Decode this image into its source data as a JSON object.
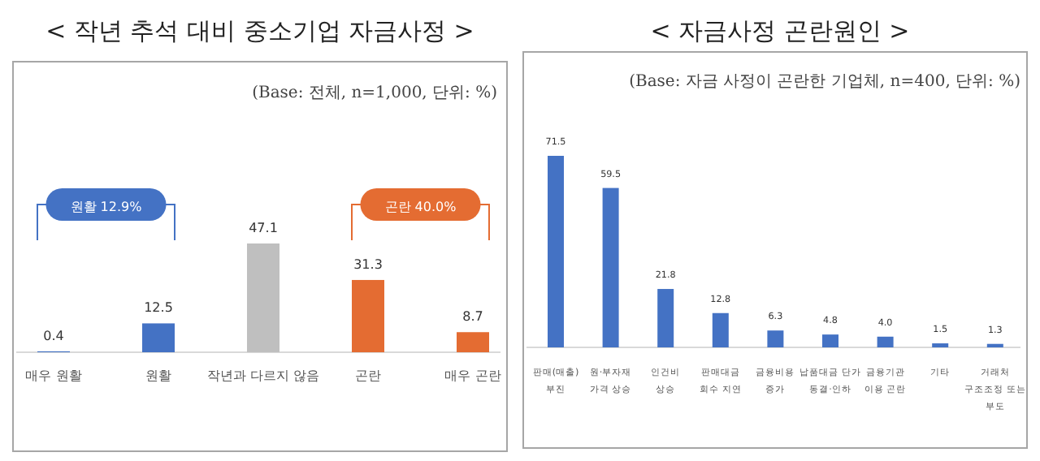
{
  "chart_data": [
    {
      "type": "bar",
      "title": "< 작년 추석 대비 중소기업 자금사정 >",
      "categories": [
        "매우 원활",
        "원활",
        "작년과 다르지 않음",
        "곤란",
        "매우 곤란"
      ],
      "values": [
        0.4,
        12.5,
        47.1,
        31.3,
        8.7
      ],
      "colors": [
        "#4472c4",
        "#4472c4",
        "#bfbfbf",
        "#e46c32",
        "#e46c32"
      ],
      "data_labels": true,
      "annotations": [
        "(Base: 전체, n=1,000, 단위: %)",
        "원활 12.9%",
        "곤란 40.0%"
      ]
    },
    {
      "type": "bar",
      "title": "< 자금사정 곤란원인 >",
      "categories": [
        "판매(매출)\n부진",
        "원·부자재\n가격 상승",
        "인건비\n상승",
        "판매대금\n회수 지연",
        "금융비용\n증가",
        "납품대금 단가\n동결·인하",
        "금융기관\n이용 곤란",
        "기타",
        "거래처\n구조조정 또는\n부도"
      ],
      "values": [
        71.5,
        59.5,
        21.8,
        12.8,
        6.3,
        4.8,
        4.0,
        1.5,
        1.3
      ],
      "colors": [
        "#4472c4",
        "#4472c4",
        "#4472c4",
        "#4472c4",
        "#4472c4",
        "#4472c4",
        "#4472c4",
        "#4472c4",
        "#4472c4"
      ],
      "value_labels": [
        "71.5",
        "59.5",
        "21.8",
        "12.8",
        "6.3",
        "4.8",
        "4.0",
        "1.5",
        "1.3"
      ],
      "annotations": [
        "(Base: 자금 사정이 곤란한 기업체, n=400, 단위: %)"
      ]
    }
  ]
}
